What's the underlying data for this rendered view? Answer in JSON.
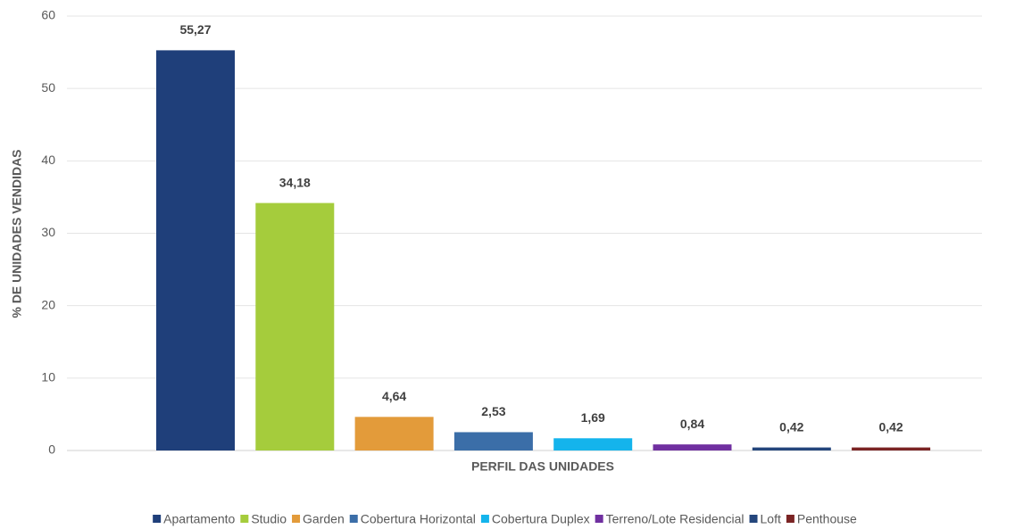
{
  "chart_data": {
    "type": "bar",
    "ylabel": "% DE UNIDADES VENDIDAS",
    "xlabel": "PERFIL DAS UNIDADES",
    "categories": [
      "Apartamento",
      "Studio",
      "Garden",
      "Cobertura Horizontal",
      "Cobertura Duplex",
      "Terreno/Lote Residencial",
      "Loft",
      "Penthouse"
    ],
    "values": [
      55.27,
      34.18,
      4.64,
      2.53,
      1.69,
      0.84,
      0.42,
      0.42
    ],
    "value_labels": [
      "55,27",
      "34,18",
      "4,64",
      "2,53",
      "1,69",
      "0,84",
      "0,42",
      "0,42"
    ],
    "colors": [
      "#1f3f7a",
      "#a5cc3c",
      "#e39b3a",
      "#3b6ea8",
      "#14b4ec",
      "#7030a0",
      "#24467c",
      "#7b2424"
    ],
    "ylim": [
      0,
      60
    ],
    "yticks": [
      0,
      10,
      20,
      30,
      40,
      50,
      60
    ],
    "grid": true,
    "legend": "bottom"
  }
}
